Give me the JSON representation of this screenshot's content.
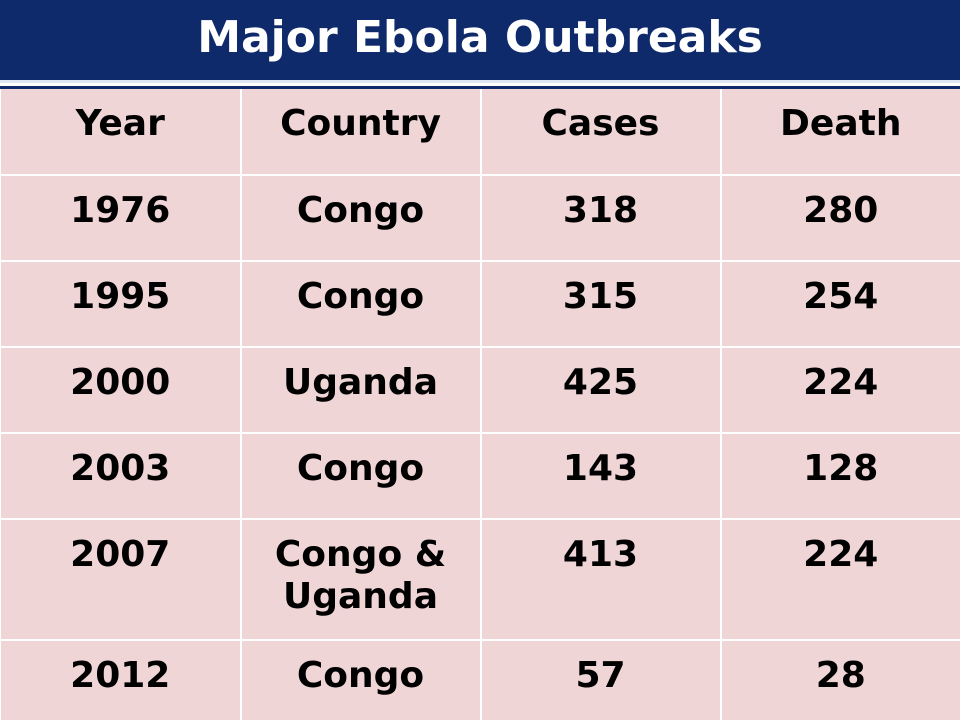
{
  "chart_data": {
    "type": "table",
    "title": "Major Ebola Outbreaks",
    "columns": [
      "Year",
      "Country",
      "Cases",
      "Death"
    ],
    "rows": [
      [
        "1976",
        "Congo",
        "318",
        "280"
      ],
      [
        "1995",
        "Congo",
        "315",
        "254"
      ],
      [
        "2000",
        "Uganda",
        "425",
        "224"
      ],
      [
        "2003",
        "Congo",
        "143",
        "128"
      ],
      [
        "2007",
        "Congo & Uganda",
        "413",
        "224"
      ],
      [
        "2012",
        "Congo",
        "57",
        "28"
      ]
    ]
  },
  "colors": {
    "title_bar": "#0f2a6a",
    "title_text": "#ffffff",
    "cell_fill": "#efd5d6",
    "cell_text": "#000000",
    "grid_lines": "#ffffff"
  }
}
